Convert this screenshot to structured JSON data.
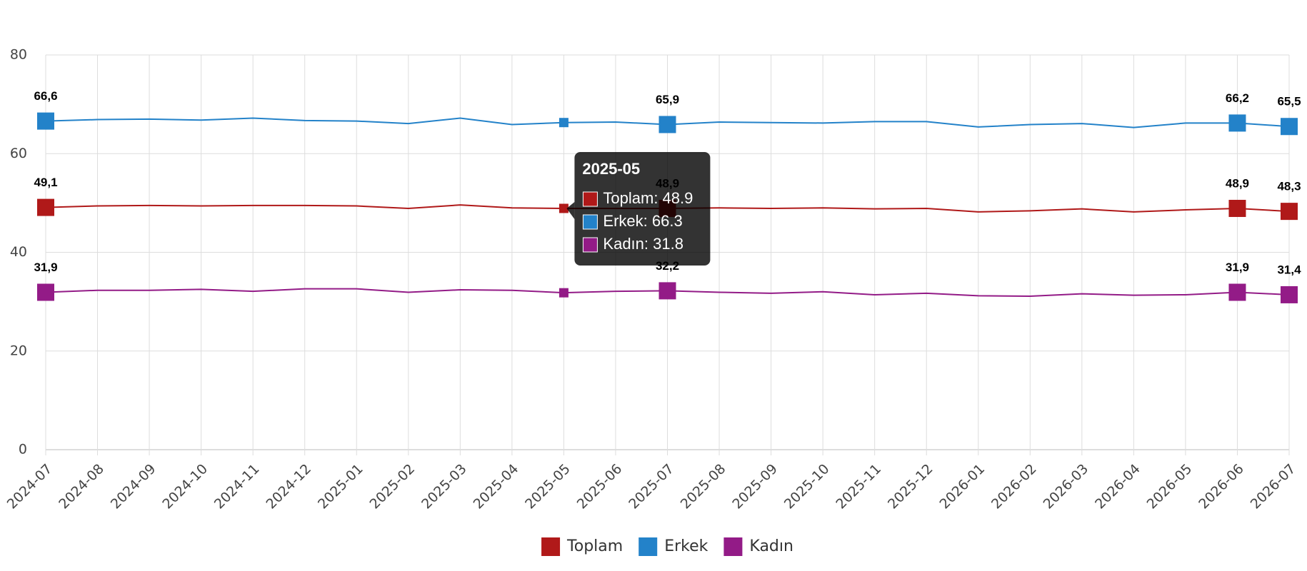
{
  "chart_data": {
    "type": "line",
    "categories": [
      "2024-07",
      "2024-08",
      "2024-09",
      "2024-10",
      "2024-11",
      "2024-12",
      "2025-01",
      "2025-02",
      "2025-03",
      "2025-04",
      "2025-05",
      "2025-06",
      "2025-07",
      "2025-08",
      "2025-09",
      "2025-10",
      "2025-11",
      "2025-12",
      "2026-01",
      "2026-02",
      "2026-03",
      "2026-04",
      "2026-05",
      "2026-06",
      "2026-07"
    ],
    "series": [
      {
        "name": "Toplam",
        "color": "#b01919",
        "values": [
          49.1,
          49.4,
          49.5,
          49.4,
          49.5,
          49.5,
          49.4,
          48.9,
          49.6,
          49.0,
          48.9,
          48.9,
          48.9,
          49.0,
          48.9,
          49.0,
          48.8,
          48.9,
          48.2,
          48.4,
          48.8,
          48.2,
          48.6,
          48.9,
          48.3
        ],
        "value_labels": [
          "49,1",
          null,
          null,
          null,
          null,
          null,
          null,
          null,
          null,
          null,
          null,
          null,
          "48,9",
          null,
          null,
          null,
          null,
          null,
          null,
          null,
          null,
          null,
          null,
          "48,9",
          "48,3"
        ]
      },
      {
        "name": "Erkek",
        "color": "#2382c9",
        "values": [
          66.6,
          66.9,
          67.0,
          66.8,
          67.2,
          66.7,
          66.6,
          66.1,
          67.2,
          65.9,
          66.3,
          66.4,
          65.9,
          66.4,
          66.3,
          66.2,
          66.5,
          66.5,
          65.4,
          65.9,
          66.1,
          65.3,
          66.2,
          66.2,
          65.5
        ],
        "value_labels": [
          "66,6",
          null,
          null,
          null,
          null,
          null,
          null,
          null,
          null,
          null,
          null,
          null,
          "65,9",
          null,
          null,
          null,
          null,
          null,
          null,
          null,
          null,
          null,
          null,
          "66,2",
          "65,5"
        ]
      },
      {
        "name": "Kadın",
        "color": "#931b87",
        "values": [
          31.9,
          32.3,
          32.3,
          32.5,
          32.1,
          32.6,
          32.6,
          31.9,
          32.4,
          32.3,
          31.8,
          32.1,
          32.2,
          31.9,
          31.7,
          32.0,
          31.4,
          31.7,
          31.2,
          31.1,
          31.6,
          31.3,
          31.4,
          31.9,
          31.4
        ],
        "value_labels": [
          "31,9",
          null,
          null,
          null,
          null,
          null,
          null,
          null,
          null,
          null,
          null,
          null,
          "32,2",
          null,
          null,
          null,
          null,
          null,
          null,
          null,
          null,
          null,
          null,
          "31,9",
          "31,4"
        ]
      }
    ],
    "ylim": [
      0,
      80
    ],
    "yticks": [
      0,
      20,
      40,
      60,
      80
    ],
    "grid": true,
    "legend": "bottom",
    "tooltip": {
      "title": "2025-05",
      "items": [
        "Toplam: 48.9",
        "Erkek: 66.3",
        "Kadın: 31.8"
      ]
    }
  }
}
